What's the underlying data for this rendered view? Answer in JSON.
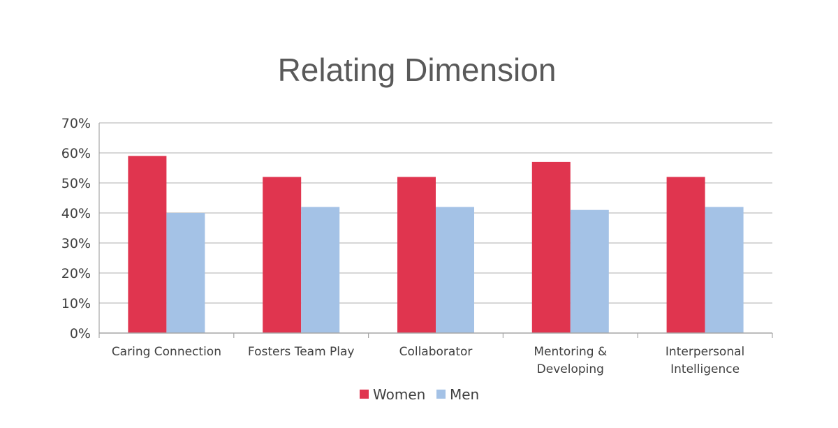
{
  "chart_data": {
    "type": "bar",
    "title": "Relating Dimension",
    "xlabel": "",
    "ylabel": "",
    "ylim": [
      0,
      70
    ],
    "yticks": [
      "0%",
      "10%",
      "20%",
      "30%",
      "40%",
      "50%",
      "60%",
      "70%"
    ],
    "categories": [
      [
        "Caring Connection"
      ],
      [
        "Fosters Team Play"
      ],
      [
        "Collaborator"
      ],
      [
        "Mentoring &",
        "Developing"
      ],
      [
        "Interpersonal",
        "Intelligence"
      ]
    ],
    "series": [
      {
        "name": "Women",
        "color": "#e0354f",
        "values": [
          59,
          52,
          52,
          57,
          52
        ]
      },
      {
        "name": "Men",
        "color": "#a4c2e6",
        "values": [
          40,
          42,
          42,
          41,
          42
        ]
      }
    ],
    "grid": true,
    "legend_position": "bottom"
  }
}
